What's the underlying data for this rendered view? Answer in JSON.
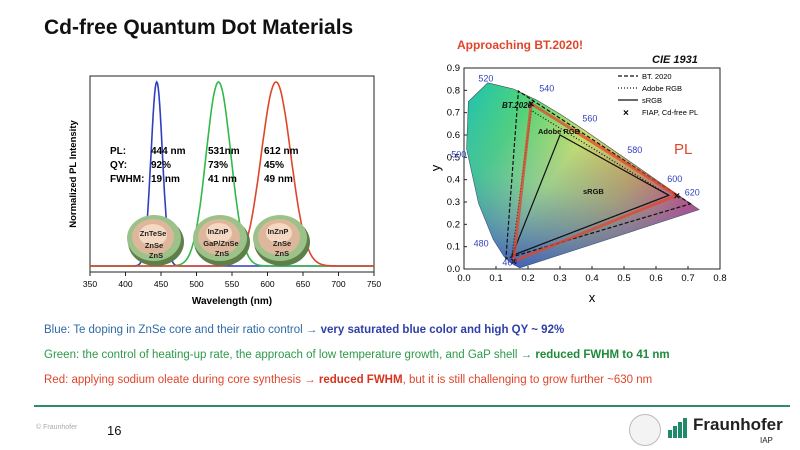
{
  "slide": {
    "title": "Cd-free Quantum Dot Materials",
    "page_number": "16",
    "copyright": "© Fraunhofer",
    "logo_name": "Fraunhofer",
    "logo_sub": "IAP"
  },
  "pl_panel": {
    "ylabel": "Normalized PL Intensity",
    "xlabel": "Wavelength (nm)",
    "x_ticks": [
      "350",
      "400",
      "450",
      "500",
      "550",
      "600",
      "650",
      "700",
      "750"
    ],
    "row_labels": [
      "PL:",
      "QY:",
      "FWHM:"
    ],
    "blue": {
      "pl": "444 nm",
      "qy": "92%",
      "fwhm": "19 nm",
      "core": "ZnTeSe",
      "shell1": "ZnSe",
      "shell2": "ZnS",
      "color": "#2f3fbf"
    },
    "green": {
      "pl": "531nm",
      "qy": "73%",
      "fwhm": "41 nm",
      "core": "InZnP",
      "shell1": "GaP/ZnSe",
      "shell2": "ZnS",
      "color": "#33b84a"
    },
    "red": {
      "pl": "612 nm",
      "qy": "45%",
      "fwhm": "49 nm",
      "core": "InZnP",
      "shell1": "ZnSe",
      "shell2": "ZnS",
      "color": "#e0452b"
    }
  },
  "cie_panel": {
    "subtitle": "Approaching BT.2020!",
    "label": "CIE 1931",
    "xlabel": "x",
    "ylabel": "y",
    "x_ticks": [
      "0.0",
      "0.1",
      "0.2",
      "0.3",
      "0.4",
      "0.5",
      "0.6",
      "0.7",
      "0.8"
    ],
    "y_ticks": [
      "0.0",
      "0.1",
      "0.2",
      "0.3",
      "0.4",
      "0.5",
      "0.6",
      "0.7",
      "0.8",
      "0.9"
    ],
    "wavelength_labels": [
      "520",
      "540",
      "560",
      "580",
      "600",
      "620",
      "500",
      "480",
      "460"
    ],
    "legend": [
      "BT. 2020",
      "Adobe RGB",
      "sRGB",
      "FIAP, Cd-free PL"
    ],
    "region_labels": {
      "bt2020": "BT.2020",
      "adobe": "Adobe RGB",
      "srgb": "sRGB",
      "pl": "PL"
    }
  },
  "chart_data": {
    "type": "line",
    "title": "",
    "xlabel": "Wavelength (nm)",
    "ylabel": "Normalized PL Intensity",
    "xlim": [
      350,
      750
    ],
    "series": [
      {
        "name": "",
        "peak_nm": 444,
        "fwhm_nm": 19
      },
      {
        "name": "",
        "peak_nm": 531,
        "fwhm_nm": 41
      },
      {
        "name": "",
        "peak_nm": 612,
        "fwhm_nm": 49
      }
    ]
  },
  "bullets": {
    "blue_lead": "Blue: Te doping in ZnSe core and their ratio control → ",
    "blue_strong": "very saturated blue color and high QY ~ 92%",
    "green_lead": "Green: the control of heating-up rate, the approach of low temperature growth, and GaP shell → ",
    "green_strong": "reduced FWHM to 41 nm",
    "red_lead": "Red: applying sodium oleate during core synthesis → ",
    "red_strong": "reduced FWHM",
    "red_tail": ", but it is still challenging to grow further ~630 nm"
  },
  "colors": {
    "blue": "#2f3fbf",
    "green": "#33b84a",
    "red": "#e0452b",
    "accent_line": "#2f8a72"
  }
}
